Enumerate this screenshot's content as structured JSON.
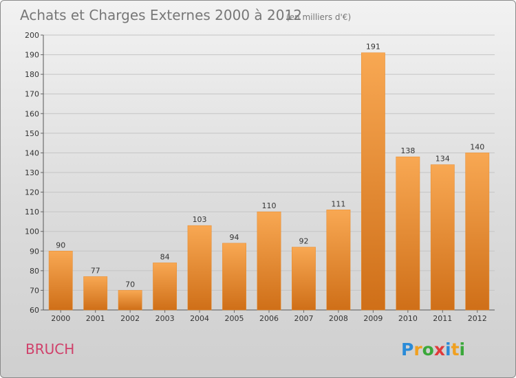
{
  "chart_data": {
    "type": "bar",
    "title": "Achats et Charges Externes 2000 à 2012",
    "subtitle": "(en milliers d'€)",
    "categories": [
      "2000",
      "2001",
      "2002",
      "2003",
      "2004",
      "2005",
      "2006",
      "2007",
      "2008",
      "2009",
      "2010",
      "2011",
      "2012"
    ],
    "values": [
      90,
      77,
      70,
      84,
      103,
      94,
      110,
      92,
      111,
      191,
      138,
      134,
      140
    ],
    "ylim": [
      60,
      200
    ],
    "yticks": [
      60,
      70,
      80,
      90,
      100,
      110,
      120,
      130,
      140,
      150,
      160,
      170,
      180,
      190,
      200
    ],
    "grid": true,
    "bar_color": "#f09a3a",
    "xlabel": "",
    "ylabel": ""
  },
  "commune": "BRUCH",
  "logo": {
    "text": "Proxiti",
    "letters": [
      "P",
      "r",
      "o",
      "x",
      "i",
      "t",
      "i"
    ],
    "colors": [
      "#2a8bd8",
      "#f0a020",
      "#3aa83a",
      "#e03a3a",
      "#2a8bd8",
      "#f0a020",
      "#3aa83a"
    ]
  }
}
